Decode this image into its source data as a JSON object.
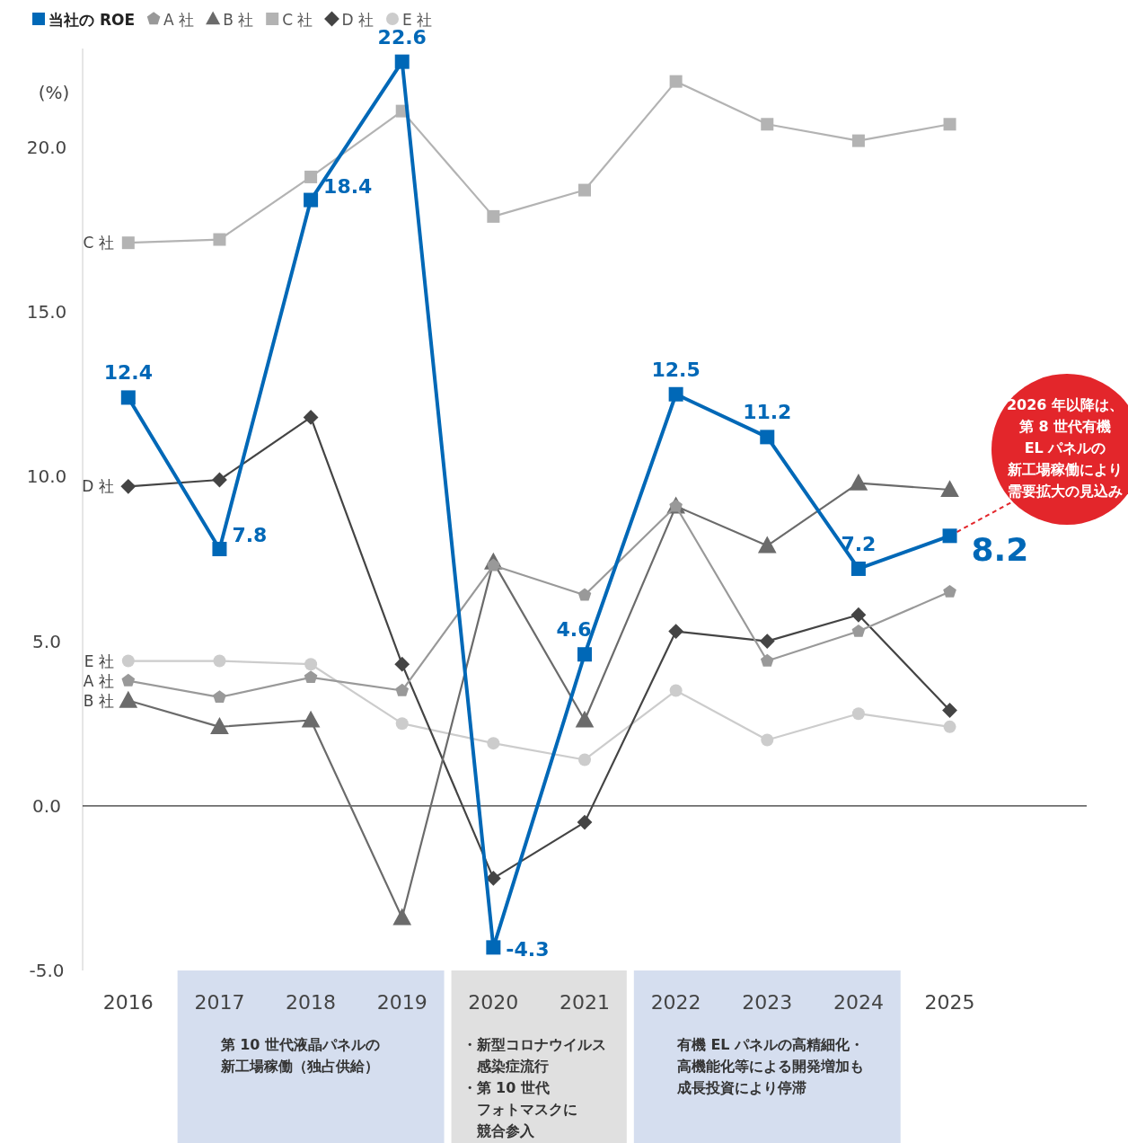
{
  "chart_data": {
    "type": "line",
    "ylabel": "(%)",
    "x": [
      2016,
      2017,
      2018,
      2019,
      2020,
      2021,
      2022,
      2023,
      2024,
      2025
    ],
    "xlim": [
      2015.5,
      2026.5
    ],
    "xticks": [
      2016,
      2017,
      2018,
      2019,
      2020,
      2021,
      2022,
      2023,
      2024,
      2025
    ],
    "ylim": [
      -5,
      23
    ],
    "yticks": [
      {
        "value": -5,
        "label": "-5.0"
      },
      {
        "value": 0,
        "label": "0.0"
      },
      {
        "value": 5,
        "label": "5.0"
      },
      {
        "value": 10,
        "label": "10.0"
      },
      {
        "value": 15,
        "label": "15.0"
      },
      {
        "value": 20,
        "label": "20.0"
      }
    ],
    "grid": false,
    "legend": "top left",
    "series": [
      {
        "name": "当社の ROE",
        "color": "#0068b7",
        "marker": "square",
        "values": [
          12.4,
          7.8,
          18.4,
          22.6,
          -4.3,
          4.6,
          12.5,
          11.2,
          7.2,
          8.2
        ],
        "value_labels": [
          "12.4",
          "7.8",
          "18.4",
          "22.6",
          "-4.3",
          "4.6",
          "12.5",
          "11.2",
          "7.2",
          "8.2"
        ]
      },
      {
        "name": "A 社",
        "color": "#999999",
        "marker": "star",
        "values": [
          3.8,
          3.3,
          3.9,
          3.5,
          7.3,
          6.4,
          9.1,
          4.4,
          5.3,
          6.5
        ]
      },
      {
        "name": "B 社",
        "color": "#6b6b6b",
        "marker": "triangle",
        "values": [
          3.2,
          2.4,
          2.6,
          -3.4,
          7.4,
          2.6,
          9.1,
          7.9,
          9.8,
          9.6
        ]
      },
      {
        "name": "C 社",
        "color": "#b3b3b3",
        "marker": "square",
        "values": [
          17.1,
          17.2,
          19.1,
          21.1,
          17.9,
          18.7,
          22.0,
          20.7,
          20.2,
          20.7
        ]
      },
      {
        "name": "D 社",
        "color": "#444444",
        "marker": "diamond",
        "values": [
          9.7,
          9.9,
          11.8,
          4.3,
          -2.2,
          -0.5,
          5.3,
          5.0,
          5.8,
          2.9
        ]
      },
      {
        "name": "E 社",
        "color": "#cccccc",
        "marker": "circle",
        "values": [
          4.4,
          4.4,
          4.3,
          2.5,
          1.9,
          1.4,
          3.5,
          2.0,
          2.8,
          2.4
        ]
      }
    ],
    "ref_lines": [
      {
        "axis": "y",
        "value": 0,
        "color": "#333333"
      }
    ],
    "annotations": [
      {
        "text": "2026 年以降は、第 8 世代有機EL パネルの新工場稼働により需要拡大の見込み",
        "x": 2025,
        "y": 8.2
      },
      "第 10 世代液晶パネルの新工場稼働（独占供給）",
      "・新型コロナウイルス感染症流行・第 10 世代フォトマスクに競合参入",
      "有機 EL パネルの高精細化・高機能化等による開発増加も成長投資により停滞"
    ]
  }
}
